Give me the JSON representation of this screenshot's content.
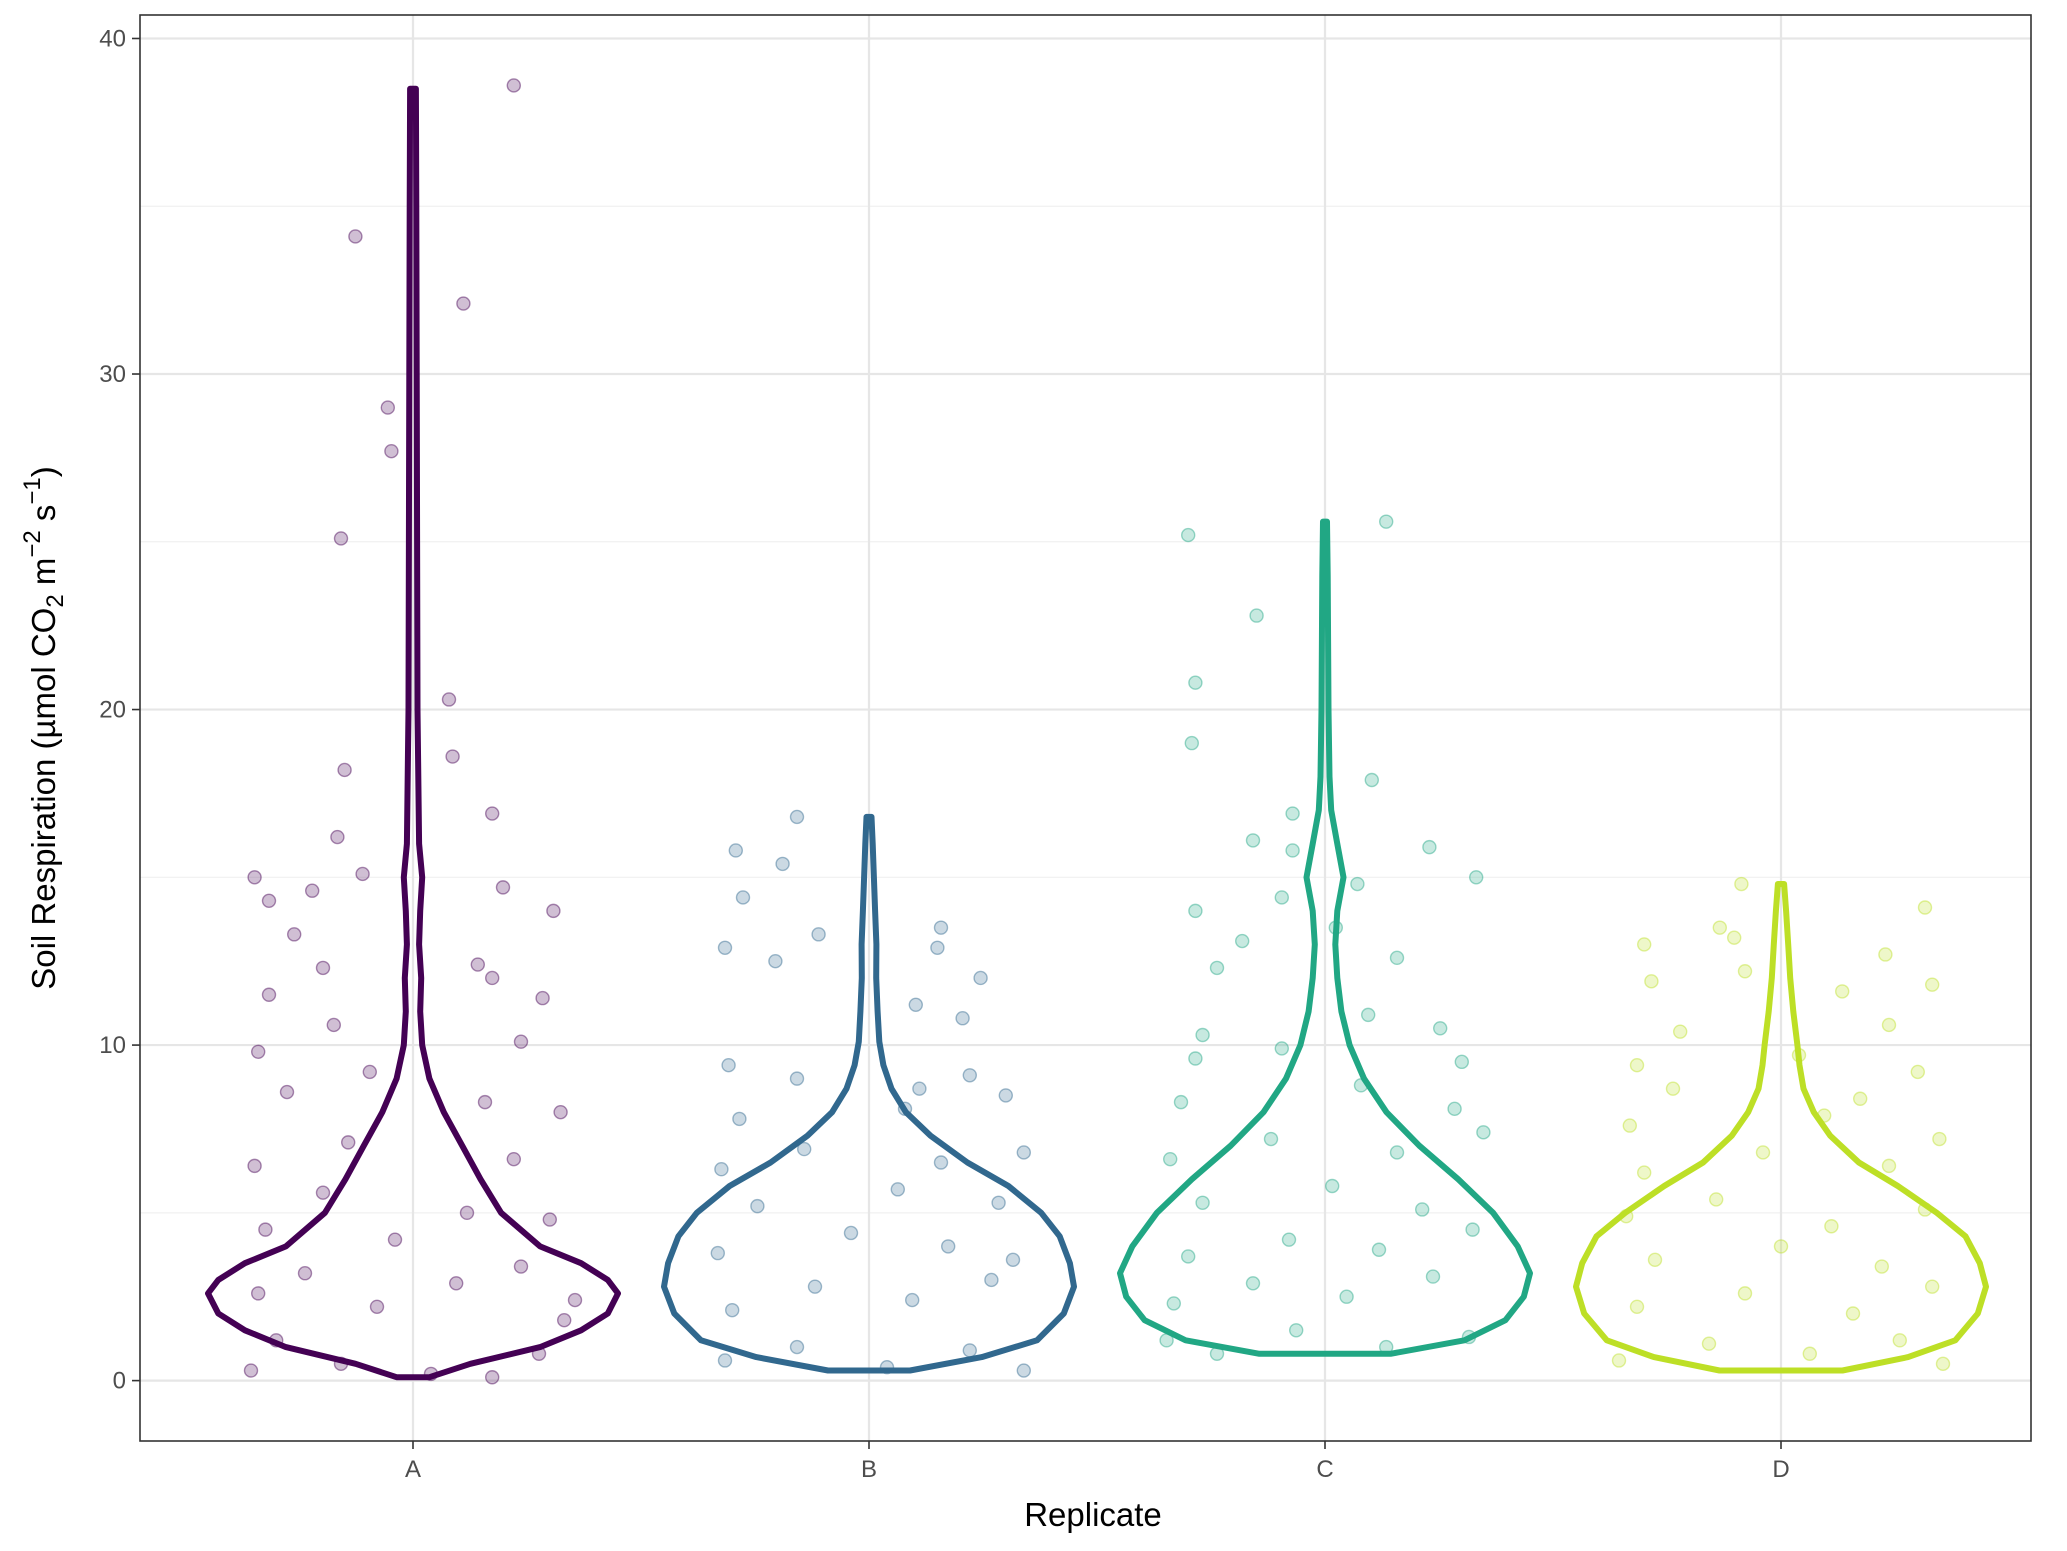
{
  "chart_data": {
    "type": "violin",
    "title": "",
    "xlabel": "Replicate",
    "ylabel": {
      "prefix": "Soil Respiration (µmol CO",
      "co2_subscript": "2",
      "unit_m": " m",
      "m_superscript": "−2",
      "unit_s": " s",
      "s_superscript": "−1",
      "suffix": ")"
    },
    "categories": [
      "A",
      "B",
      "C",
      "D"
    ],
    "ylim": [
      -1.8,
      40.7
    ],
    "y_ticks": [
      0,
      10,
      20,
      30,
      40
    ],
    "y_tick_labels": [
      "0",
      "10",
      "20",
      "30",
      "40"
    ],
    "grid": true,
    "legend": "none",
    "colors": [
      "#440154",
      "#31688e",
      "#21a784",
      "#bddf26"
    ],
    "series": [
      {
        "category": "A",
        "color": "#440154",
        "violin": {
          "y": [
            0.1,
            0.5,
            1.0,
            1.5,
            2.0,
            2.6,
            3.0,
            3.5,
            4.0,
            5.0,
            6.0,
            7.0,
            8.0,
            9.0,
            10.0,
            11.0,
            12.0,
            13.0,
            14.0,
            15.0,
            16.0,
            20.0,
            25.0,
            30.0,
            35.0,
            38.5
          ],
          "width": [
            0.08,
            0.28,
            0.62,
            0.82,
            0.95,
            1.0,
            0.95,
            0.82,
            0.62,
            0.43,
            0.33,
            0.24,
            0.15,
            0.08,
            0.045,
            0.035,
            0.04,
            0.03,
            0.035,
            0.045,
            0.03,
            0.022,
            0.02,
            0.018,
            0.016,
            0.014
          ]
        },
        "points": [
          [
            -0.45,
            0.3
          ],
          [
            -0.38,
            1.2
          ],
          [
            -0.2,
            0.5
          ],
          [
            0.05,
            0.2
          ],
          [
            0.22,
            0.1
          ],
          [
            0.35,
            0.8
          ],
          [
            0.42,
            1.8
          ],
          [
            -0.43,
            2.6
          ],
          [
            -0.3,
            3.2
          ],
          [
            -0.1,
            2.2
          ],
          [
            0.12,
            2.9
          ],
          [
            0.3,
            3.4
          ],
          [
            0.45,
            2.4
          ],
          [
            -0.41,
            4.5
          ],
          [
            -0.25,
            5.6
          ],
          [
            -0.05,
            4.2
          ],
          [
            0.15,
            5.0
          ],
          [
            0.38,
            4.8
          ],
          [
            -0.44,
            6.4
          ],
          [
            -0.18,
            7.1
          ],
          [
            0.28,
            6.6
          ],
          [
            0.41,
            8.0
          ],
          [
            -0.35,
            8.6
          ],
          [
            -0.12,
            9.2
          ],
          [
            0.2,
            8.3
          ],
          [
            -0.43,
            9.8
          ],
          [
            -0.22,
            10.6
          ],
          [
            0.3,
            10.1
          ],
          [
            -0.4,
            11.5
          ],
          [
            -0.25,
            12.3
          ],
          [
            0.22,
            12.0
          ],
          [
            0.36,
            11.4
          ],
          [
            -0.33,
            13.3
          ],
          [
            0.18,
            12.4
          ],
          [
            -0.4,
            14.3
          ],
          [
            -0.28,
            14.6
          ],
          [
            0.39,
            14.0
          ],
          [
            -0.44,
            15.0
          ],
          [
            -0.14,
            15.1
          ],
          [
            0.25,
            14.7
          ],
          [
            -0.21,
            16.2
          ],
          [
            0.22,
            16.9
          ],
          [
            -0.19,
            18.2
          ],
          [
            0.11,
            18.6
          ],
          [
            0.1,
            20.3
          ],
          [
            -0.2,
            25.1
          ],
          [
            -0.06,
            27.7
          ],
          [
            -0.07,
            29.0
          ],
          [
            0.14,
            32.1
          ],
          [
            -0.16,
            34.1
          ],
          [
            0.28,
            38.6
          ]
        ]
      },
      {
        "category": "B",
        "color": "#31688e",
        "violin": {
          "y": [
            0.3,
            0.7,
            1.2,
            2.0,
            2.8,
            3.5,
            4.3,
            5.0,
            5.8,
            6.5,
            7.3,
            8.0,
            8.7,
            9.4,
            10.1,
            11.0,
            12.0,
            13.0,
            14.0,
            15.0,
            16.0,
            16.8
          ],
          "width": [
            0.2,
            0.55,
            0.82,
            0.95,
            1.0,
            0.98,
            0.93,
            0.84,
            0.68,
            0.48,
            0.3,
            0.18,
            0.11,
            0.07,
            0.05,
            0.042,
            0.035,
            0.036,
            0.03,
            0.024,
            0.018,
            0.012
          ]
        },
        "points": [
          [
            -0.4,
            0.6
          ],
          [
            -0.2,
            1.0
          ],
          [
            0.05,
            0.4
          ],
          [
            0.28,
            0.9
          ],
          [
            0.43,
            0.3
          ],
          [
            -0.38,
            2.1
          ],
          [
            -0.15,
            2.8
          ],
          [
            0.12,
            2.4
          ],
          [
            0.34,
            3.0
          ],
          [
            -0.42,
            3.8
          ],
          [
            -0.05,
            4.4
          ],
          [
            0.22,
            4.0
          ],
          [
            0.4,
            3.6
          ],
          [
            -0.31,
            5.2
          ],
          [
            0.08,
            5.7
          ],
          [
            0.36,
            5.3
          ],
          [
            -0.41,
            6.3
          ],
          [
            -0.18,
            6.9
          ],
          [
            0.2,
            6.5
          ],
          [
            0.43,
            6.8
          ],
          [
            -0.36,
            7.8
          ],
          [
            0.1,
            8.1
          ],
          [
            0.38,
            8.5
          ],
          [
            -0.39,
            9.4
          ],
          [
            -0.2,
            9.0
          ],
          [
            0.14,
            8.7
          ],
          [
            0.28,
            9.1
          ],
          [
            -0.4,
            12.9
          ],
          [
            -0.26,
            12.5
          ],
          [
            0.13,
            11.2
          ],
          [
            0.26,
            10.8
          ],
          [
            0.31,
            12.0
          ],
          [
            -0.35,
            14.4
          ],
          [
            -0.14,
            13.3
          ],
          [
            0.19,
            12.9
          ],
          [
            0.2,
            13.5
          ],
          [
            -0.37,
            15.8
          ],
          [
            -0.24,
            15.4
          ],
          [
            -0.2,
            16.8
          ]
        ]
      },
      {
        "category": "C",
        "color": "#21a784",
        "violin": {
          "y": [
            0.8,
            1.2,
            1.8,
            2.5,
            3.2,
            4.0,
            5.0,
            6.0,
            7.0,
            8.0,
            9.0,
            10.0,
            11.0,
            12.0,
            13.0,
            14.0,
            15.0,
            16.0,
            17.0,
            18.0,
            20.0,
            22.0,
            24.0,
            25.6
          ],
          "width": [
            0.32,
            0.68,
            0.88,
            0.97,
            1.0,
            0.94,
            0.82,
            0.65,
            0.46,
            0.3,
            0.19,
            0.12,
            0.08,
            0.06,
            0.05,
            0.06,
            0.09,
            0.06,
            0.03,
            0.022,
            0.017,
            0.015,
            0.013,
            0.01
          ]
        },
        "points": [
          [
            -0.44,
            1.2
          ],
          [
            -0.3,
            0.8
          ],
          [
            -0.08,
            1.5
          ],
          [
            0.17,
            1.0
          ],
          [
            0.4,
            1.3
          ],
          [
            -0.42,
            2.3
          ],
          [
            -0.2,
            2.9
          ],
          [
            0.06,
            2.5
          ],
          [
            0.3,
            3.1
          ],
          [
            -0.38,
            3.7
          ],
          [
            -0.1,
            4.2
          ],
          [
            0.15,
            3.9
          ],
          [
            0.41,
            4.5
          ],
          [
            -0.34,
            5.3
          ],
          [
            0.02,
            5.8
          ],
          [
            0.27,
            5.1
          ],
          [
            -0.43,
            6.6
          ],
          [
            -0.15,
            7.2
          ],
          [
            0.2,
            6.8
          ],
          [
            0.44,
            7.4
          ],
          [
            -0.4,
            8.3
          ],
          [
            0.1,
            8.8
          ],
          [
            0.36,
            8.1
          ],
          [
            -0.36,
            9.6
          ],
          [
            -0.12,
            9.9
          ],
          [
            0.38,
            9.5
          ],
          [
            -0.34,
            10.3
          ],
          [
            0.32,
            10.5
          ],
          [
            0.12,
            10.9
          ],
          [
            -0.3,
            12.3
          ],
          [
            0.2,
            12.6
          ],
          [
            -0.23,
            13.1
          ],
          [
            0.03,
            13.5
          ],
          [
            -0.36,
            14.0
          ],
          [
            -0.12,
            14.4
          ],
          [
            0.09,
            14.8
          ],
          [
            0.42,
            15.0
          ],
          [
            -0.2,
            16.1
          ],
          [
            -0.09,
            15.8
          ],
          [
            0.29,
            15.9
          ],
          [
            -0.09,
            16.9
          ],
          [
            0.13,
            17.9
          ],
          [
            -0.37,
            19.0
          ],
          [
            -0.36,
            20.8
          ],
          [
            -0.19,
            22.8
          ],
          [
            -0.38,
            25.2
          ],
          [
            0.17,
            25.6
          ]
        ]
      },
      {
        "category": "D",
        "color": "#bddf26",
        "violin": {
          "y": [
            0.3,
            0.7,
            1.2,
            2.0,
            2.8,
            3.5,
            4.3,
            5.0,
            5.8,
            6.5,
            7.3,
            8.0,
            8.7,
            9.4,
            10.0,
            11.0,
            12.0,
            13.0,
            14.0,
            14.8
          ],
          "width": [
            0.3,
            0.62,
            0.85,
            0.96,
            1.0,
            0.97,
            0.9,
            0.76,
            0.57,
            0.38,
            0.24,
            0.16,
            0.11,
            0.09,
            0.08,
            0.06,
            0.045,
            0.035,
            0.025,
            0.015
          ]
        },
        "points": [
          [
            -0.45,
            0.6
          ],
          [
            -0.2,
            1.1
          ],
          [
            0.08,
            0.8
          ],
          [
            0.33,
            1.2
          ],
          [
            0.45,
            0.5
          ],
          [
            -0.4,
            2.2
          ],
          [
            -0.1,
            2.6
          ],
          [
            0.2,
            2.0
          ],
          [
            0.42,
            2.8
          ],
          [
            -0.35,
            3.6
          ],
          [
            0.0,
            4.0
          ],
          [
            0.28,
            3.4
          ],
          [
            -0.43,
            4.9
          ],
          [
            -0.18,
            5.4
          ],
          [
            0.14,
            4.6
          ],
          [
            0.4,
            5.1
          ],
          [
            -0.38,
            6.2
          ],
          [
            -0.05,
            6.8
          ],
          [
            0.3,
            6.4
          ],
          [
            -0.42,
            7.6
          ],
          [
            0.12,
            7.9
          ],
          [
            0.44,
            7.2
          ],
          [
            -0.3,
            8.7
          ],
          [
            0.22,
            8.4
          ],
          [
            -0.4,
            9.4
          ],
          [
            0.05,
            9.7
          ],
          [
            0.38,
            9.2
          ],
          [
            -0.28,
            10.4
          ],
          [
            0.3,
            10.6
          ],
          [
            -0.36,
            11.9
          ],
          [
            -0.1,
            12.2
          ],
          [
            0.17,
            11.6
          ],
          [
            0.42,
            11.8
          ],
          [
            -0.38,
            13.0
          ],
          [
            -0.13,
            13.2
          ],
          [
            0.29,
            12.7
          ],
          [
            -0.17,
            13.5
          ],
          [
            0.4,
            14.1
          ],
          [
            -0.11,
            14.8
          ]
        ]
      }
    ]
  }
}
